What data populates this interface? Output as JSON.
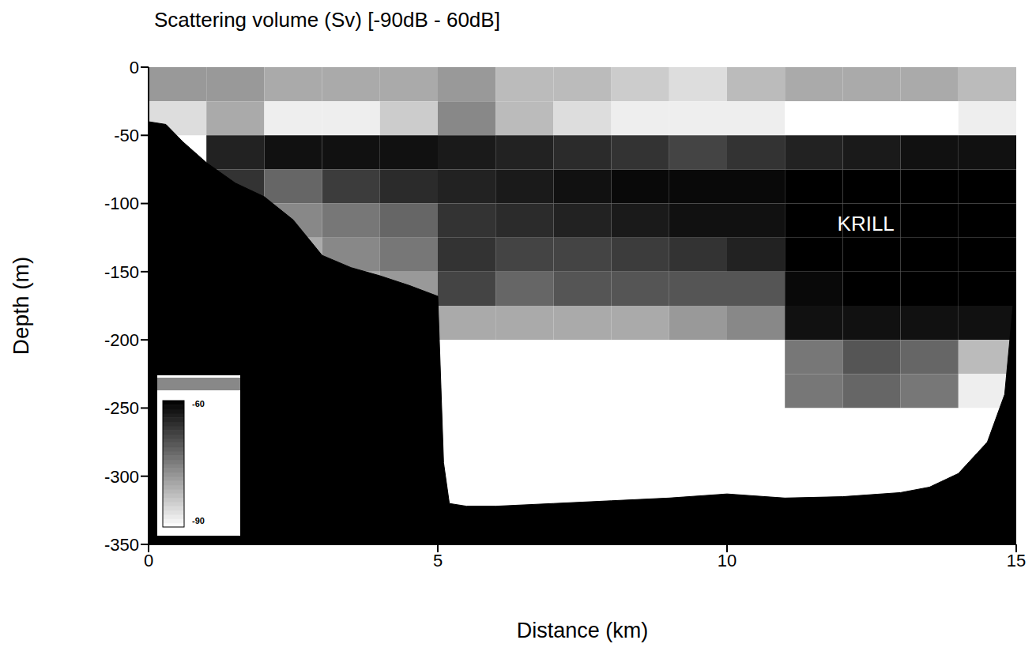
{
  "chart_data": {
    "type": "heatmap",
    "title": "Scattering volume (Sv) [-90dB - 60dB]",
    "x_label": "Distance (km)",
    "y_label": "Depth (m)",
    "xlim": [
      0,
      15
    ],
    "xticks": [
      0,
      5,
      10,
      15
    ],
    "ylim": [
      -350,
      0
    ],
    "yticks": [
      -350,
      -300,
      -250,
      -200,
      -150,
      -100,
      -50,
      0
    ],
    "x_edges": [
      0,
      1,
      2,
      3,
      4,
      5,
      6,
      7,
      8,
      9,
      10,
      11,
      12,
      13,
      14,
      15
    ],
    "y_edges": [
      0,
      -25,
      -50,
      -75,
      -100,
      -125,
      -150,
      -175,
      -200,
      -225,
      -250,
      -275,
      -300,
      -325,
      -350
    ],
    "cells": [
      [
        -78,
        -78,
        -80,
        -80,
        -80,
        -78,
        -82,
        -82,
        -84,
        -86,
        -82,
        -80,
        -80,
        -80,
        -82
      ],
      [
        -86,
        -80,
        -88,
        -88,
        -84,
        -76,
        -82,
        -86,
        -88,
        -88,
        -88,
        -90,
        -90,
        -90,
        -88
      ],
      [
        null,
        -64,
        -62,
        -62,
        -62,
        -63,
        -64,
        -65,
        -66,
        -68,
        -66,
        -64,
        -63,
        -62,
        -62
      ],
      [
        null,
        -66,
        -72,
        -67,
        -65,
        -64,
        -63,
        -62,
        -61,
        -61,
        -61,
        -60,
        -60,
        -60,
        -60
      ],
      [
        null,
        null,
        -76,
        -74,
        -72,
        -66,
        -65,
        -64,
        -63,
        -62,
        -62,
        -60,
        -60,
        -60,
        -60
      ],
      [
        null,
        null,
        -80,
        -76,
        -74,
        -66,
        -68,
        -68,
        -67,
        -66,
        -64,
        -60,
        -60,
        -60,
        -60
      ],
      [
        null,
        null,
        null,
        -80,
        -78,
        -68,
        -72,
        -70,
        -70,
        -70,
        -70,
        -61,
        -60,
        -60,
        -60
      ],
      [
        null,
        null,
        null,
        null,
        null,
        -80,
        -80,
        -80,
        -80,
        -78,
        -76,
        -62,
        -62,
        -62,
        -62
      ],
      [
        null,
        null,
        null,
        null,
        null,
        -90,
        -90,
        -90,
        -90,
        -90,
        -90,
        -74,
        -70,
        -72,
        -82
      ],
      [
        null,
        null,
        null,
        null,
        null,
        -90,
        -90,
        -90,
        -90,
        -90,
        -90,
        -74,
        -72,
        -74,
        -88
      ],
      [
        null,
        null,
        null,
        null,
        null,
        -90,
        -90,
        -90,
        -90,
        -90,
        -90,
        -90,
        -90,
        -90,
        -90
      ],
      [
        null,
        null,
        null,
        null,
        null,
        -90,
        -90,
        -90,
        -90,
        -90,
        -90,
        -90,
        -90,
        -90,
        -90
      ],
      [
        null,
        null,
        null,
        null,
        null,
        -90,
        -90,
        -90,
        -90,
        -90,
        -90,
        -90,
        -90,
        -90,
        -90
      ],
      [
        null,
        null,
        null,
        null,
        null,
        null,
        null,
        null,
        null,
        null,
        null,
        null,
        null,
        null,
        null
      ]
    ],
    "colorbar": {
      "range": [
        -90,
        -60
      ],
      "ticks": [
        -60,
        -90
      ]
    },
    "seabed": {
      "color": "#000000",
      "x": [
        0,
        0.3,
        0.6,
        1,
        1.5,
        2,
        2.5,
        3,
        3.5,
        4,
        4.5,
        5,
        5.1,
        5.2,
        5.5,
        6,
        7,
        8,
        9,
        10,
        11,
        12,
        13,
        13.5,
        14,
        14.5,
        14.8,
        15
      ],
      "depth": [
        -40,
        -42,
        -55,
        -70,
        -85,
        -95,
        -112,
        -138,
        -147,
        -153,
        -160,
        -168,
        -290,
        -320,
        -322,
        -322,
        -320,
        -318,
        -316,
        -313,
        -316,
        -315,
        -312,
        -308,
        -298,
        -275,
        -240,
        -150
      ]
    },
    "annotations": [
      {
        "text": "KRILL",
        "x": 12.4,
        "y": -115
      }
    ]
  }
}
